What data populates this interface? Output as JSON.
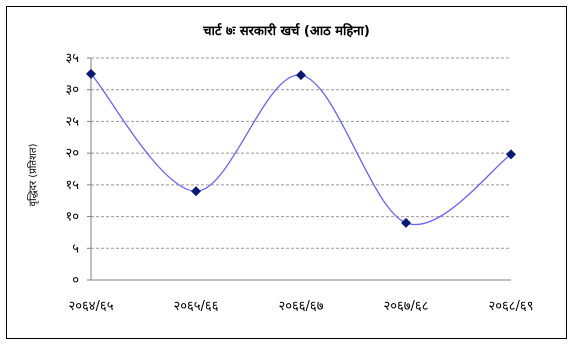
{
  "chart_data": {
    "type": "line",
    "title": "चार्ट ७ः सरकारी खर्च (आठ महिना)",
    "ylabel": "वृद्धिदर (प्रतिशत)",
    "xlabel": "",
    "categories": [
      "२०६४/६५",
      "२०६५/६६",
      "२०६६/६७",
      "२०६७/६८",
      "२०६८/६९"
    ],
    "series": [
      {
        "values": [
          32.5,
          14,
          32.3,
          9,
          19.8
        ]
      }
    ],
    "ylim": [
      0,
      35
    ],
    "yticks": [
      0,
      5,
      10,
      15,
      20,
      25,
      30,
      35
    ],
    "ytick_labels": [
      "०",
      "५",
      "१०",
      "१५",
      "२०",
      "२५",
      "३०",
      "३५"
    ],
    "grid": true,
    "legend": "none",
    "colors": {
      "line": "#6666ee",
      "marker": "#0a1a6e",
      "grid": "#999999",
      "axis": "#808080"
    }
  }
}
